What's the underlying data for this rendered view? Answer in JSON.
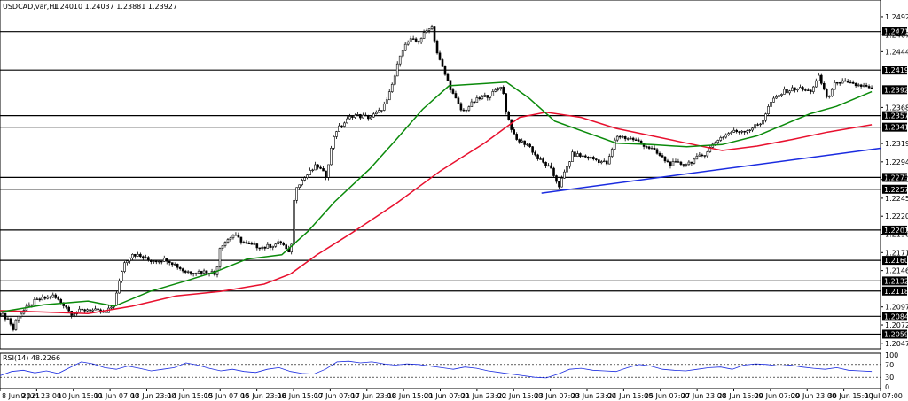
{
  "header": {
    "symbol": "USDCAD,var,H1",
    "ohlc": "1.24010 1.24037 1.23881 1.23927"
  },
  "rsi_label": "RSI(14) 48.2266",
  "chart_data": {
    "type": "candlestick",
    "symbol": "USDCAD,var,H1",
    "ylim": [
      1.204,
      1.251
    ],
    "price_ticks": [
      "1.24920",
      "1.24675",
      "1.24445",
      "1.23685",
      "1.23195",
      "1.22945",
      "1.22705",
      "1.22450",
      "1.22205",
      "1.21960",
      "1.21710",
      "1.21465",
      "1.20970",
      "1.20725",
      "1.20475"
    ],
    "x_labels": [
      "8 Jun 2021",
      "9 Jun 23:00",
      "10 Jun 15:00",
      "11 Jun 07:00",
      "13 Jun 23:00",
      "14 Jun 15:00",
      "15 Jun 07:00",
      "15 Jun 23:00",
      "16 Jun 15:00",
      "17 Jun 07:00",
      "17 Jun 23:00",
      "18 Jun 15:00",
      "21 Jun 07:00",
      "21 Jun 23:00",
      "22 Jun 15:00",
      "23 Jun 07:00",
      "23 Jun 23:00",
      "24 Jun 15:00",
      "25 Jun 07:00",
      "27 Jun 23:00",
      "28 Jun 15:00",
      "29 Jun 07:00",
      "29 Jun 23:00",
      "30 Jun 15:00",
      "1 Jul 07:00"
    ],
    "levels": [
      {
        "label": "1.24718",
        "value": 1.24718
      },
      {
        "label": "1.24194",
        "value": 1.24194
      },
      {
        "label": "1.23927",
        "value": 1.23927,
        "current": true
      },
      {
        "label": "1.23574",
        "value": 1.23574
      },
      {
        "label": "1.23417",
        "value": 1.23417
      },
      {
        "label": "1.22733",
        "value": 1.22733
      },
      {
        "label": "1.22572",
        "value": 1.22572
      },
      {
        "label": "1.22016",
        "value": 1.22016
      },
      {
        "label": "1.21604",
        "value": 1.21604
      },
      {
        "label": "1.21323",
        "value": 1.21323
      },
      {
        "label": "1.21186",
        "value": 1.21186
      },
      {
        "label": "1.20842",
        "value": 1.20842
      },
      {
        "label": "1.20599",
        "value": 1.20599
      }
    ],
    "trendline": {
      "from": [
        0.615,
        1.2252
      ],
      "to": [
        1.0,
        1.2313
      ]
    },
    "ma_fast": [
      [
        0.0,
        1.209
      ],
      [
        0.05,
        1.21
      ],
      [
        0.1,
        1.2105
      ],
      [
        0.13,
        1.2098
      ],
      [
        0.17,
        1.2118
      ],
      [
        0.21,
        1.2132
      ],
      [
        0.245,
        1.2145
      ],
      [
        0.28,
        1.2162
      ],
      [
        0.32,
        1.2168
      ],
      [
        0.35,
        1.22
      ],
      [
        0.38,
        1.224
      ],
      [
        0.42,
        1.2285
      ],
      [
        0.45,
        1.2325
      ],
      [
        0.48,
        1.2366
      ],
      [
        0.51,
        1.2398
      ],
      [
        0.55,
        1.2401
      ],
      [
        0.575,
        1.2403
      ],
      [
        0.6,
        1.2382
      ],
      [
        0.63,
        1.235
      ],
      [
        0.66,
        1.2337
      ],
      [
        0.7,
        1.232
      ],
      [
        0.74,
        1.2318
      ],
      [
        0.78,
        1.2315
      ],
      [
        0.82,
        1.2318
      ],
      [
        0.86,
        1.233
      ],
      [
        0.89,
        1.2345
      ],
      [
        0.92,
        1.236
      ],
      [
        0.95,
        1.237
      ],
      [
        0.99,
        1.239
      ]
    ],
    "ma_slow": [
      [
        0.0,
        1.2092
      ],
      [
        0.05,
        1.209
      ],
      [
        0.1,
        1.2088
      ],
      [
        0.15,
        1.2098
      ],
      [
        0.2,
        1.2112
      ],
      [
        0.25,
        1.2118
      ],
      [
        0.3,
        1.2128
      ],
      [
        0.33,
        1.2142
      ],
      [
        0.36,
        1.2168
      ],
      [
        0.4,
        1.2198
      ],
      [
        0.45,
        1.2238
      ],
      [
        0.5,
        1.2282
      ],
      [
        0.55,
        1.232
      ],
      [
        0.59,
        1.2355
      ],
      [
        0.62,
        1.2362
      ],
      [
        0.66,
        1.2355
      ],
      [
        0.7,
        1.234
      ],
      [
        0.74,
        1.233
      ],
      [
        0.78,
        1.232
      ],
      [
        0.82,
        1.231
      ],
      [
        0.86,
        1.2316
      ],
      [
        0.9,
        1.2325
      ],
      [
        0.94,
        1.2335
      ],
      [
        0.99,
        1.2345
      ]
    ],
    "price_path": [
      [
        0.0,
        1.2088
      ],
      [
        0.01,
        1.208
      ],
      [
        0.015,
        1.2066
      ],
      [
        0.02,
        1.2085
      ],
      [
        0.04,
        1.2105
      ],
      [
        0.06,
        1.2112
      ],
      [
        0.075,
        1.2098
      ],
      [
        0.08,
        1.2088
      ],
      [
        0.1,
        1.2094
      ],
      [
        0.12,
        1.2088
      ],
      [
        0.13,
        1.2102
      ],
      [
        0.14,
        1.2155
      ],
      [
        0.15,
        1.217
      ],
      [
        0.17,
        1.216
      ],
      [
        0.19,
        1.2162
      ],
      [
        0.21,
        1.2145
      ],
      [
        0.24,
        1.2145
      ],
      [
        0.245,
        1.214
      ],
      [
        0.25,
        1.218
      ],
      [
        0.265,
        1.2195
      ],
      [
        0.28,
        1.2182
      ],
      [
        0.3,
        1.2178
      ],
      [
        0.32,
        1.2185
      ],
      [
        0.33,
        1.2165
      ],
      [
        0.335,
        1.226
      ],
      [
        0.345,
        1.2272
      ],
      [
        0.36,
        1.229
      ],
      [
        0.37,
        1.2275
      ],
      [
        0.38,
        1.2335
      ],
      [
        0.4,
        1.2358
      ],
      [
        0.42,
        1.2355
      ],
      [
        0.43,
        1.2362
      ],
      [
        0.44,
        1.2378
      ],
      [
        0.45,
        1.2418
      ],
      [
        0.455,
        1.2445
      ],
      [
        0.465,
        1.246
      ],
      [
        0.475,
        1.2458
      ],
      [
        0.49,
        1.2482
      ],
      [
        0.497,
        1.244
      ],
      [
        0.505,
        1.2415
      ],
      [
        0.515,
        1.2385
      ],
      [
        0.525,
        1.2362
      ],
      [
        0.54,
        1.2378
      ],
      [
        0.56,
        1.2388
      ],
      [
        0.57,
        1.24
      ],
      [
        0.575,
        1.2362
      ],
      [
        0.585,
        1.2325
      ],
      [
        0.6,
        1.2318
      ],
      [
        0.61,
        1.23
      ],
      [
        0.625,
        1.2285
      ],
      [
        0.635,
        1.2262
      ],
      [
        0.65,
        1.2305
      ],
      [
        0.67,
        1.23
      ],
      [
        0.69,
        1.2292
      ],
      [
        0.7,
        1.233
      ],
      [
        0.72,
        1.2325
      ],
      [
        0.74,
        1.2312
      ],
      [
        0.76,
        1.2292
      ],
      [
        0.78,
        1.2292
      ],
      [
        0.8,
        1.2305
      ],
      [
        0.815,
        1.2325
      ],
      [
        0.83,
        1.2335
      ],
      [
        0.85,
        1.2338
      ],
      [
        0.865,
        1.2348
      ],
      [
        0.875,
        1.2375
      ],
      [
        0.89,
        1.239
      ],
      [
        0.905,
        1.2395
      ],
      [
        0.92,
        1.239
      ],
      [
        0.93,
        1.241
      ],
      [
        0.94,
        1.238
      ],
      [
        0.95,
        1.2405
      ],
      [
        0.965,
        1.24
      ],
      [
        0.98,
        1.2398
      ],
      [
        0.99,
        1.2393
      ]
    ],
    "rsi": {
      "ylim": [
        0,
        100
      ],
      "levels": [
        30,
        70
      ],
      "tick_labels": [
        "100",
        "70",
        "30",
        "0"
      ],
      "values": [
        35,
        48,
        52,
        44,
        50,
        42,
        60,
        78,
        72,
        60,
        55,
        65,
        58,
        50,
        55,
        60,
        75,
        68,
        58,
        50,
        55,
        48,
        45,
        55,
        60,
        48,
        42,
        40,
        55,
        78,
        80,
        75,
        78,
        72,
        68,
        72,
        70,
        65,
        60,
        55,
        62,
        58,
        50,
        45,
        40,
        35,
        30,
        28,
        40,
        55,
        58,
        52,
        50,
        48,
        60,
        70,
        65,
        55,
        52,
        50,
        55,
        60,
        62,
        55,
        68,
        72,
        70,
        65,
        68,
        62,
        58,
        55,
        60,
        52,
        50,
        48
      ]
    }
  }
}
